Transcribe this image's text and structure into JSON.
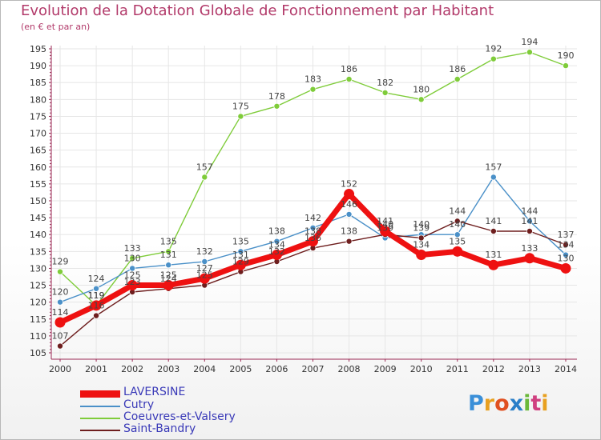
{
  "header": {
    "title": "Evolution de la Dotation Globale de Fonctionnement par Habitant",
    "subtitle": "(en € et par an)"
  },
  "logo": {
    "text": "Proxiti"
  },
  "colors": {
    "title": "#b23a6a",
    "axis": "#9b2a55",
    "grid": "#e6e6e6",
    "legend_text": "#3a3ab8"
  },
  "chart_data": {
    "type": "line",
    "x": [
      2000,
      2001,
      2002,
      2003,
      2004,
      2005,
      2006,
      2007,
      2008,
      2009,
      2010,
      2011,
      2012,
      2013,
      2014
    ],
    "ylim": [
      105,
      195
    ],
    "yticks": [
      105,
      110,
      115,
      120,
      125,
      130,
      135,
      140,
      145,
      150,
      155,
      160,
      165,
      170,
      175,
      180,
      185,
      190,
      195
    ],
    "grid": true,
    "legend_position": "bottom-left",
    "series": [
      {
        "name": "Coeuvres-et-Valsery",
        "color": "#7fcc3a",
        "values": [
          129,
          119,
          133,
          135,
          157,
          175,
          178,
          183,
          186,
          182,
          180,
          186,
          192,
          194,
          190
        ]
      },
      {
        "name": "Cutry",
        "color": "#4a90c8",
        "values": [
          120,
          124,
          130,
          131,
          132,
          135,
          138,
          142,
          146,
          139,
          140,
          140,
          157,
          144,
          134
        ]
      },
      {
        "name": "Saint-Bandry",
        "color": "#6e1e1e",
        "values": [
          107,
          116,
          123,
          124,
          125,
          129,
          132,
          136,
          138,
          140,
          139,
          144,
          141,
          141,
          137
        ]
      },
      {
        "name": "LAVERSINE",
        "color": "#ee1111",
        "values": [
          114,
          119,
          125,
          125,
          127,
          131,
          134,
          138,
          152,
          141,
          134,
          135,
          131,
          133,
          130
        ]
      }
    ]
  }
}
